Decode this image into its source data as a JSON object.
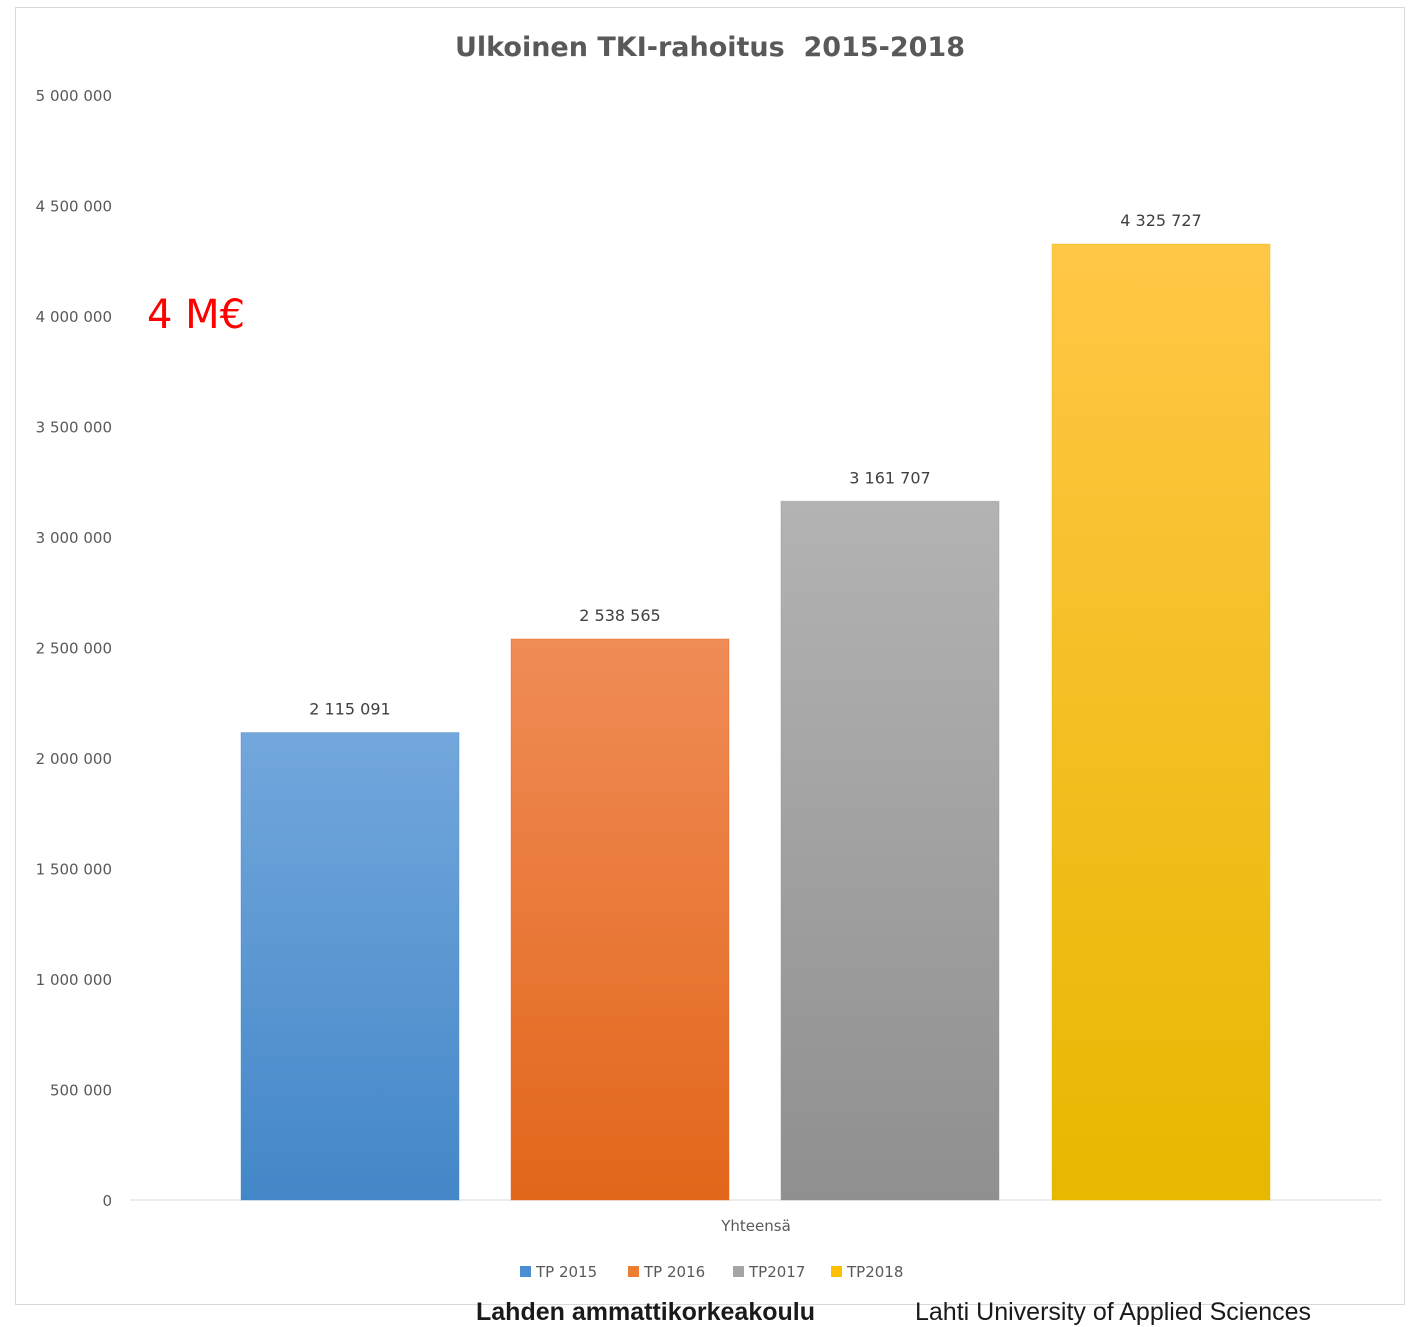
{
  "chart_data": {
    "type": "bar",
    "title": "Ulkoinen TKI-rahoitus  2015-2018",
    "categories": [
      "Yhteensä"
    ],
    "series": [
      {
        "name": "TP 2015",
        "values": [
          2115091
        ],
        "label": "2 115 091",
        "color_top": "#73a7dc",
        "color_bottom": "#4387c8",
        "legend_color": "#4a8fd4"
      },
      {
        "name": "TP 2016",
        "values": [
          2538565
        ],
        "label": "2 538 565",
        "color_top": "#f08c57",
        "color_bottom": "#e2661a",
        "legend_color": "#ed7d31"
      },
      {
        "name": "TP2017",
        "values": [
          3161707
        ],
        "label": "3 161 707",
        "color_top": "#b3b3b3",
        "color_bottom": "#8f8f8f",
        "legend_color": "#a5a5a5"
      },
      {
        "name": "TP2018",
        "values": [
          4325727
        ],
        "label": "4 325 727",
        "color_top": "#ffc746",
        "color_bottom": "#e6b800",
        "legend_color": "#ffc000"
      }
    ],
    "ylim": [
      0,
      5000000
    ],
    "yticks": [
      {
        "value": 0,
        "label": "0"
      },
      {
        "value": 500000,
        "label": "500 000"
      },
      {
        "value": 1000000,
        "label": "1 000 000"
      },
      {
        "value": 1500000,
        "label": "1 500 000"
      },
      {
        "value": 2000000,
        "label": "2 000 000"
      },
      {
        "value": 2500000,
        "label": "2 500 000"
      },
      {
        "value": 3000000,
        "label": "3 000 000"
      },
      {
        "value": 3500000,
        "label": "3 500 000"
      },
      {
        "value": 4000000,
        "label": "4 000 000"
      },
      {
        "value": 4500000,
        "label": "4 500 000"
      },
      {
        "value": 5000000,
        "label": "5 000 000"
      }
    ],
    "grid": false,
    "legend_position": "bottom",
    "annotation": {
      "text": "4 M€",
      "value": 4000000,
      "color": "#ff0000"
    }
  },
  "footer": {
    "name_fi": "Lahden ammattikorkeakoulu",
    "name_en": "Lahti University of Applied Sciences"
  }
}
